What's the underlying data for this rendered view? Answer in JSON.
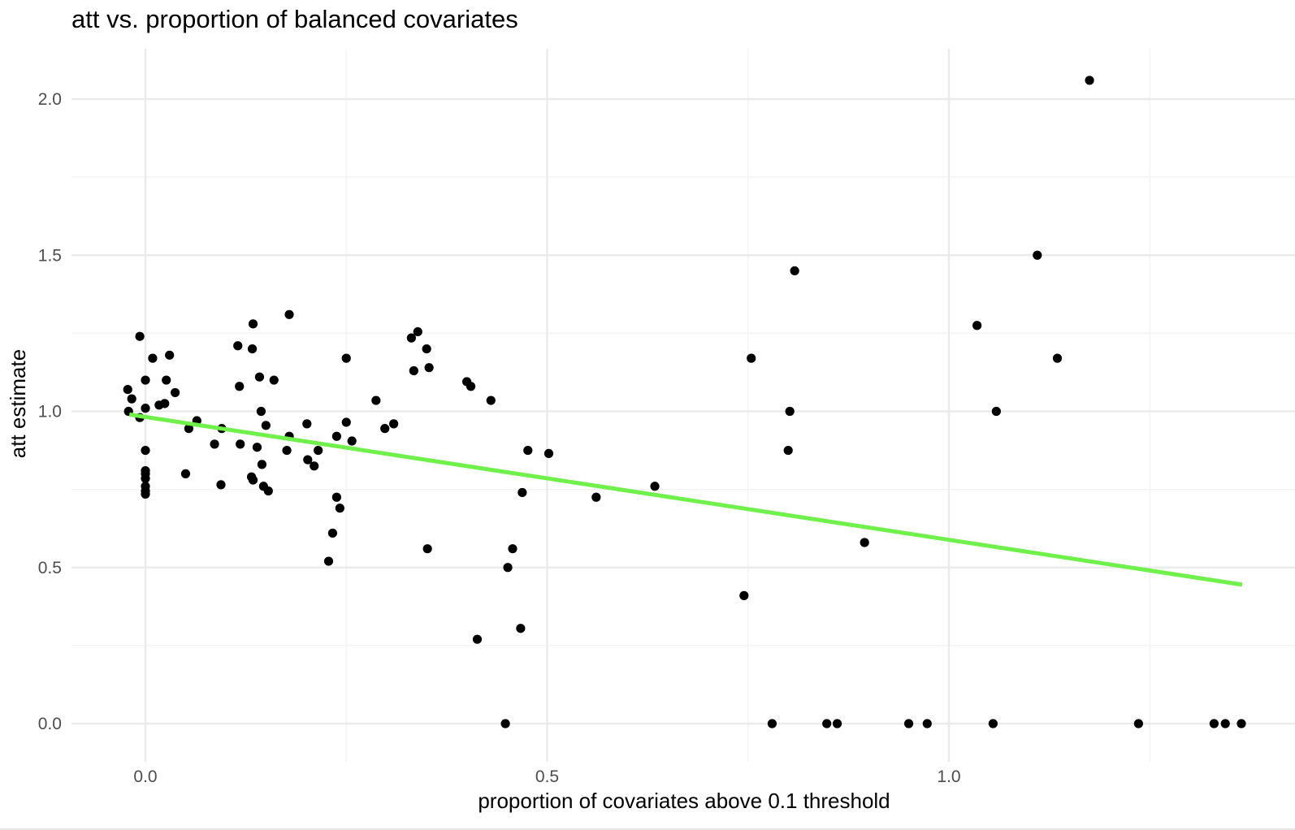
{
  "chart_data": {
    "type": "scatter",
    "title": "att vs. proportion of balanced covariates",
    "xlabel": "proportion of covariates above 0.1 threshold",
    "ylabel": "att estimate",
    "xlim": [
      -0.09,
      1.43
    ],
    "ylim": [
      -0.1,
      2.2
    ],
    "x_ticks": [
      {
        "value": 0.0,
        "label": "0.0"
      },
      {
        "value": 0.5,
        "label": "0.5"
      },
      {
        "value": 1.0,
        "label": "1.0"
      }
    ],
    "x_minor_ticks": [
      0.25,
      0.75,
      1.25
    ],
    "y_ticks": [
      {
        "value": 0.0,
        "label": "0.0"
      },
      {
        "value": 0.5,
        "label": "0.5"
      },
      {
        "value": 1.0,
        "label": "1.0"
      },
      {
        "value": 1.5,
        "label": "1.5"
      },
      {
        "value": 2.0,
        "label": "2.0"
      }
    ],
    "y_minor_ticks": [
      0.25,
      0.75,
      1.25,
      1.75
    ],
    "grid": true,
    "colors": {
      "points": "#000000",
      "fit_line": "#6ff04a",
      "grid_major": "#ebebeb",
      "grid_minor": "#f3f3f3",
      "background": "#ffffff"
    },
    "fit_line": {
      "x": [
        -0.02,
        1.365
      ],
      "y": [
        0.99,
        0.445
      ]
    },
    "points": [
      {
        "x": -0.022,
        "y": 1.07
      },
      {
        "x": -0.021,
        "y": 1.0
      },
      {
        "x": -0.017,
        "y": 1.04
      },
      {
        "x": -0.007,
        "y": 1.24
      },
      {
        "x": -0.007,
        "y": 0.98
      },
      {
        "x": 0.0,
        "y": 1.1
      },
      {
        "x": 0.0,
        "y": 1.01
      },
      {
        "x": 0.0,
        "y": 0.875
      },
      {
        "x": 0.0,
        "y": 0.81
      },
      {
        "x": 0.0,
        "y": 0.8
      },
      {
        "x": 0.0,
        "y": 0.785
      },
      {
        "x": 0.0,
        "y": 0.76
      },
      {
        "x": 0.0,
        "y": 0.745
      },
      {
        "x": 0.0,
        "y": 0.735
      },
      {
        "x": 0.009,
        "y": 1.17
      },
      {
        "x": 0.017,
        "y": 1.02
      },
      {
        "x": 0.024,
        "y": 1.025
      },
      {
        "x": 0.026,
        "y": 1.1
      },
      {
        "x": 0.03,
        "y": 1.18
      },
      {
        "x": 0.037,
        "y": 1.06
      },
      {
        "x": 0.05,
        "y": 0.8
      },
      {
        "x": 0.054,
        "y": 0.945
      },
      {
        "x": 0.064,
        "y": 0.97
      },
      {
        "x": 0.086,
        "y": 0.895
      },
      {
        "x": 0.094,
        "y": 0.765
      },
      {
        "x": 0.095,
        "y": 0.945
      },
      {
        "x": 0.115,
        "y": 1.21
      },
      {
        "x": 0.117,
        "y": 1.08
      },
      {
        "x": 0.118,
        "y": 0.895
      },
      {
        "x": 0.132,
        "y": 0.79
      },
      {
        "x": 0.133,
        "y": 1.2
      },
      {
        "x": 0.134,
        "y": 1.28
      },
      {
        "x": 0.134,
        "y": 0.78
      },
      {
        "x": 0.139,
        "y": 0.885
      },
      {
        "x": 0.142,
        "y": 1.11
      },
      {
        "x": 0.144,
        "y": 1.0
      },
      {
        "x": 0.145,
        "y": 0.83
      },
      {
        "x": 0.147,
        "y": 0.76
      },
      {
        "x": 0.15,
        "y": 0.955
      },
      {
        "x": 0.153,
        "y": 0.745
      },
      {
        "x": 0.16,
        "y": 1.1
      },
      {
        "x": 0.176,
        "y": 0.875
      },
      {
        "x": 0.179,
        "y": 1.31
      },
      {
        "x": 0.179,
        "y": 0.92
      },
      {
        "x": 0.201,
        "y": 0.96
      },
      {
        "x": 0.202,
        "y": 0.845
      },
      {
        "x": 0.21,
        "y": 0.825
      },
      {
        "x": 0.215,
        "y": 0.875
      },
      {
        "x": 0.228,
        "y": 0.52
      },
      {
        "x": 0.233,
        "y": 0.61
      },
      {
        "x": 0.238,
        "y": 0.92
      },
      {
        "x": 0.238,
        "y": 0.725
      },
      {
        "x": 0.242,
        "y": 0.69
      },
      {
        "x": 0.25,
        "y": 1.17
      },
      {
        "x": 0.25,
        "y": 0.965
      },
      {
        "x": 0.257,
        "y": 0.905
      },
      {
        "x": 0.287,
        "y": 1.035
      },
      {
        "x": 0.298,
        "y": 0.945
      },
      {
        "x": 0.309,
        "y": 0.96
      },
      {
        "x": 0.331,
        "y": 1.235
      },
      {
        "x": 0.334,
        "y": 1.13
      },
      {
        "x": 0.339,
        "y": 1.255
      },
      {
        "x": 0.35,
        "y": 1.2
      },
      {
        "x": 0.351,
        "y": 0.56
      },
      {
        "x": 0.353,
        "y": 1.14
      },
      {
        "x": 0.4,
        "y": 1.095
      },
      {
        "x": 0.405,
        "y": 1.08
      },
      {
        "x": 0.413,
        "y": 0.27
      },
      {
        "x": 0.43,
        "y": 1.035
      },
      {
        "x": 0.448,
        "y": 0.0
      },
      {
        "x": 0.451,
        "y": 0.5
      },
      {
        "x": 0.457,
        "y": 0.56
      },
      {
        "x": 0.467,
        "y": 0.305
      },
      {
        "x": 0.469,
        "y": 0.74
      },
      {
        "x": 0.476,
        "y": 0.875
      },
      {
        "x": 0.502,
        "y": 0.865
      },
      {
        "x": 0.561,
        "y": 0.725
      },
      {
        "x": 0.634,
        "y": 0.76
      },
      {
        "x": 0.745,
        "y": 0.41
      },
      {
        "x": 0.754,
        "y": 1.17
      },
      {
        "x": 0.78,
        "y": 0.0
      },
      {
        "x": 0.8,
        "y": 0.875
      },
      {
        "x": 0.802,
        "y": 1.0
      },
      {
        "x": 0.808,
        "y": 1.45
      },
      {
        "x": 0.848,
        "y": 0.0
      },
      {
        "x": 0.861,
        "y": 0.0
      },
      {
        "x": 0.895,
        "y": 0.58
      },
      {
        "x": 0.95,
        "y": 0.0
      },
      {
        "x": 0.973,
        "y": 0.0
      },
      {
        "x": 1.035,
        "y": 1.275
      },
      {
        "x": 1.055,
        "y": 0.0
      },
      {
        "x": 1.059,
        "y": 1.0
      },
      {
        "x": 1.11,
        "y": 1.5
      },
      {
        "x": 1.135,
        "y": 1.17
      },
      {
        "x": 1.175,
        "y": 2.06
      },
      {
        "x": 1.236,
        "y": 0.0
      },
      {
        "x": 1.33,
        "y": 0.0
      },
      {
        "x": 1.344,
        "y": 0.0
      },
      {
        "x": 1.364,
        "y": 0.0
      }
    ]
  }
}
